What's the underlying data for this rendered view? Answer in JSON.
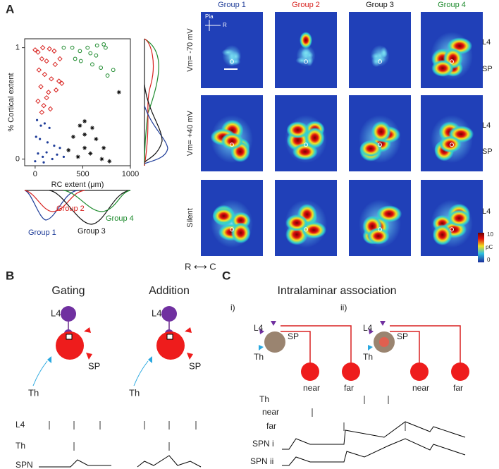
{
  "panels": {
    "a": "A",
    "b": "B",
    "c": "C"
  },
  "chart_data": {
    "type": "scatter",
    "xlabel": "RC extent (μm)",
    "ylabel": "% Cortical extent",
    "xlim": [
      -110,
      1000
    ],
    "ylim": [
      -0.06,
      1.08
    ],
    "xticks": [
      0,
      500,
      1000
    ],
    "yticks": [
      0,
      1
    ],
    "series": [
      {
        "name": "Group 1",
        "color": "#1f3d99",
        "marker": "dot",
        "x": [
          20,
          60,
          100,
          150,
          10,
          50,
          130,
          200,
          260,
          30,
          80,
          120,
          180,
          230,
          300,
          0,
          90
        ],
        "values": [
          0.35,
          0.3,
          0.32,
          0.28,
          0.2,
          0.18,
          0.15,
          0.12,
          0.1,
          0.05,
          0.02,
          0.06,
          0.0,
          0.04,
          0.02,
          -0.02,
          -0.03
        ]
      },
      {
        "name": "Group 2",
        "color": "#d8221f",
        "marker": "diamond",
        "x": [
          0,
          30,
          80,
          150,
          200,
          70,
          120,
          210,
          260,
          40,
          100,
          170,
          250,
          60,
          140,
          220,
          30,
          90,
          160,
          70,
          120,
          280
        ],
        "values": [
          0.98,
          0.96,
          1.0,
          0.99,
          0.97,
          0.9,
          0.88,
          0.85,
          0.9,
          0.8,
          0.76,
          0.72,
          0.7,
          0.65,
          0.6,
          0.62,
          0.52,
          0.48,
          0.45,
          0.42,
          0.55,
          0.68
        ]
      },
      {
        "name": "Group 3",
        "color": "#111111",
        "marker": "asterisk",
        "x": [
          470,
          520,
          600,
          880,
          400,
          520,
          640,
          720,
          350,
          450,
          580,
          700,
          780,
          520
        ],
        "values": [
          0.3,
          0.34,
          0.28,
          0.6,
          0.2,
          0.22,
          0.18,
          0.1,
          0.08,
          0.02,
          0.05,
          0.0,
          -0.02,
          0.1
        ]
      },
      {
        "name": "Group 4",
        "color": "#1c8a2c",
        "marker": "circle",
        "x": [
          300,
          390,
          470,
          550,
          650,
          720,
          740,
          640,
          480,
          600,
          690,
          760,
          820,
          580,
          420
        ],
        "values": [
          1.0,
          1.0,
          0.97,
          1.0,
          1.02,
          1.03,
          1.0,
          0.93,
          0.88,
          0.85,
          0.82,
          0.75,
          0.8,
          0.95,
          0.9
        ]
      }
    ]
  },
  "maps": {
    "columns": [
      "Group 1",
      "Group 2",
      "Group 3",
      "Group 4"
    ],
    "rows": [
      "Vm= -70 mV",
      "Vm= +40 mV",
      "Silent"
    ],
    "layers": [
      "L4",
      "SP",
      "L4",
      "SP",
      "L4"
    ],
    "pia": "Pia",
    "r": "R",
    "colorbar": [
      "10",
      "pC",
      "0"
    ],
    "axis": "R ⟷ C"
  },
  "gating": {
    "title": "Gating",
    "l4": "L4",
    "sp": "SP",
    "th": "Th"
  },
  "addition": {
    "title": "Addition",
    "l4": "L4",
    "sp": "SP",
    "th": "Th"
  },
  "traces_b": [
    "L4",
    "Th",
    "SPN"
  ],
  "association": {
    "title": "Intralaminar association",
    "i": "i)",
    "ii": "ii)",
    "labels_i": [
      "L4",
      "SP",
      "Th",
      "near",
      "far"
    ],
    "labels_ii": [
      "L4",
      "SP",
      "Th",
      "near",
      "far"
    ]
  },
  "traces_c": [
    "Th",
    "near",
    "far",
    "SPN i",
    "SPN ii"
  ]
}
